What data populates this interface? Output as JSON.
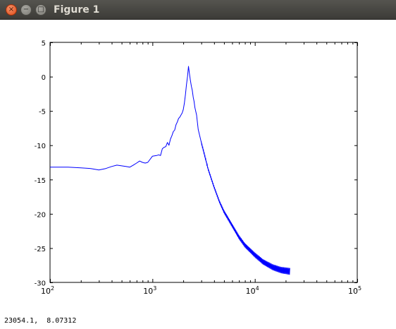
{
  "window": {
    "title": "Figure 1",
    "buttons": {
      "close": "×",
      "minimize": "−",
      "maximize": "□"
    }
  },
  "status_bar": {
    "coords": "23054.1,  8.07312"
  },
  "colors": {
    "line": "#0000ff",
    "titlebar": "#3c3b37",
    "close_button": "#df4a16"
  },
  "chart_data": {
    "type": "line",
    "xscale": "log",
    "xlim": [
      100,
      100000
    ],
    "ylim": [
      -30,
      5
    ],
    "x_ticks": [
      {
        "base": "10",
        "exp": "2",
        "value": 100
      },
      {
        "base": "10",
        "exp": "3",
        "value": 1000
      },
      {
        "base": "10",
        "exp": "4",
        "value": 10000
      },
      {
        "base": "10",
        "exp": "5",
        "value": 100000
      }
    ],
    "y_ticks": [
      "5",
      "0",
      "-5",
      "-10",
      "-15",
      "-20",
      "-25",
      "-30"
    ],
    "grid": false,
    "series": [
      {
        "color": "#0000ff",
        "x": [
          100,
          150,
          200,
          250,
          300,
          350,
          400,
          450,
          500,
          550,
          600,
          650,
          700,
          750,
          800,
          850,
          900,
          1000,
          1100,
          1150,
          1200,
          1250,
          1300,
          1350,
          1400,
          1450,
          1500,
          1550,
          1600,
          1650,
          1700,
          1750,
          1800,
          1850,
          1900,
          1950,
          2000,
          2050,
          2100,
          2150,
          2200,
          2250,
          2300,
          2350,
          2400,
          2450,
          2500,
          2550,
          2600,
          2700,
          2800,
          3000,
          3200,
          3500,
          4000,
          4500,
          5000,
          6000,
          7000,
          8000,
          10000,
          12000,
          15000,
          18000,
          20000,
          22000
        ],
        "y": [
          -13.2,
          -13.2,
          -13.3,
          -13.4,
          -13.6,
          -13.4,
          -13.1,
          -12.9,
          -13.0,
          -13.1,
          -13.2,
          -12.9,
          -12.6,
          -12.3,
          -12.5,
          -12.6,
          -12.5,
          -11.6,
          -11.5,
          -11.4,
          -11.5,
          -10.5,
          -10.3,
          -10.2,
          -9.6,
          -10.0,
          -9.1,
          -8.6,
          -8.0,
          -7.8,
          -7.0,
          -6.6,
          -6.1,
          -5.9,
          -5.6,
          -5.3,
          -4.8,
          -3.9,
          -2.6,
          -1.2,
          0.0,
          1.5,
          0.4,
          -0.6,
          -1.4,
          -2.0,
          -3.0,
          -3.6,
          -4.5,
          -5.6,
          -7.7,
          -9.6,
          -11.2,
          -13.5,
          -16.1,
          -18.2,
          -19.7,
          -21.7,
          -23.4,
          -24.6,
          -26.0,
          -27.0,
          -27.8,
          -28.2,
          -28.3,
          -28.4
        ]
      }
    ]
  }
}
